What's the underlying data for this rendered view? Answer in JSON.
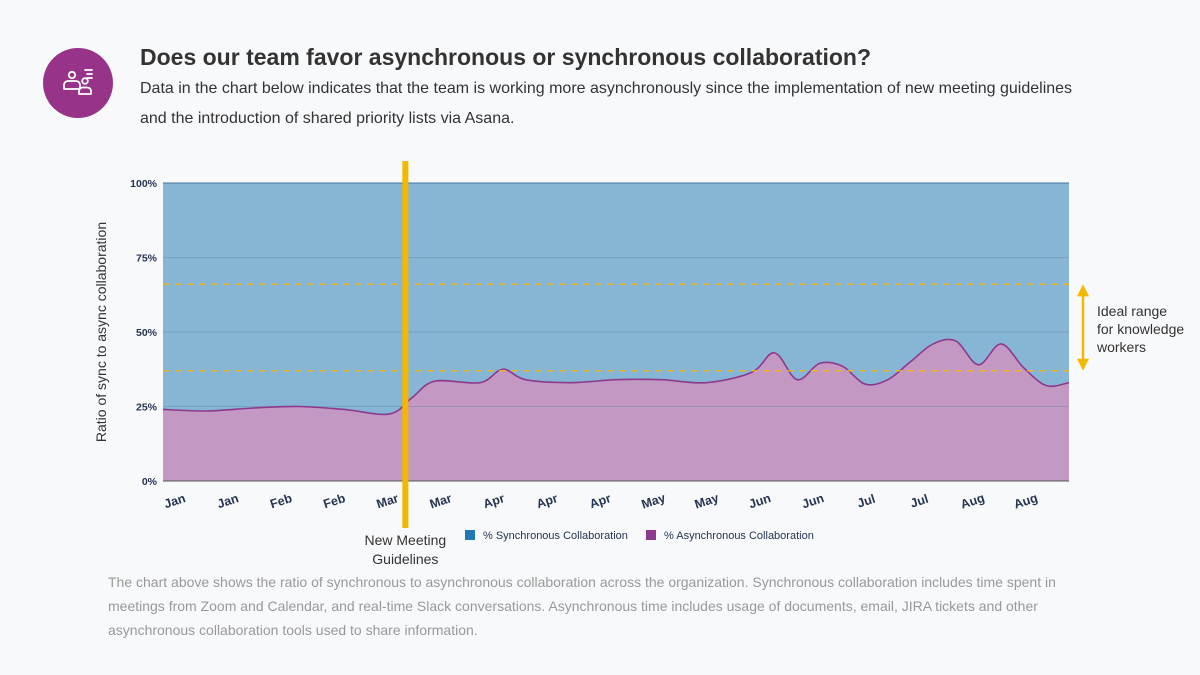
{
  "header": {
    "logo_icon": "team-collaboration-icon",
    "title": "Does our team favor asynchronous or synchronous collaboration?",
    "subtitle": "Data in the chart below indicates that the team is working more asynchronously since the implementation of new meeting guidelines and the introduction of shared priority lists via Asana."
  },
  "footer": {
    "text": "The chart above shows the ratio of synchronous to asynchronous collaboration across the organization. Synchronous collaboration includes time spent in meetings from Zoom and Calendar, and real-time Slack conversations. Asynchronous time includes usage of documents, email, JIRA tickets and other asynchronous collaboration tools used to share information."
  },
  "colors": {
    "accent": "#98338a",
    "sync": "#1f77b4",
    "async": "#8e3a8c",
    "marker": "#f5b800"
  },
  "chart_data": {
    "type": "area",
    "stacked": true,
    "ylabel": "Ratio of sync to async collaboration",
    "ylim": [
      0,
      100
    ],
    "yticks": [
      "0%",
      "25%",
      "50%",
      "75%",
      "100%"
    ],
    "x_labels": [
      "Jan",
      "Jan",
      "Feb",
      "Feb",
      "Mar",
      "Mar",
      "Apr",
      "Apr",
      "Apr",
      "May",
      "May",
      "Jun",
      "Jun",
      "Jul",
      "Jul",
      "Aug",
      "Aug"
    ],
    "series": [
      {
        "name": "% Synchronous Collaboration",
        "color": "#1f77b4",
        "note": "complement to 100%"
      },
      {
        "name": "% Asynchronous Collaboration",
        "color": "#8e3a8c",
        "points": [
          [
            0,
            24
          ],
          [
            1,
            23.5
          ],
          [
            2,
            24.5
          ],
          [
            3,
            25
          ],
          [
            4,
            24
          ],
          [
            5,
            22.5
          ],
          [
            5.5,
            28
          ],
          [
            6,
            33.5
          ],
          [
            7,
            33
          ],
          [
            7.5,
            37.5
          ],
          [
            8,
            34
          ],
          [
            9,
            33
          ],
          [
            10,
            34
          ],
          [
            11,
            34
          ],
          [
            12,
            33
          ],
          [
            13,
            36.5
          ],
          [
            13.5,
            43
          ],
          [
            14,
            34
          ],
          [
            14.5,
            39.5
          ],
          [
            15,
            38.5
          ],
          [
            15.5,
            32.5
          ],
          [
            16,
            34
          ],
          [
            16.5,
            40
          ],
          [
            17,
            46
          ],
          [
            17.5,
            47
          ],
          [
            18,
            39
          ],
          [
            18.5,
            46
          ],
          [
            19,
            38
          ],
          [
            19.5,
            32
          ],
          [
            20,
            33
          ]
        ]
      }
    ],
    "x_domain": [
      0,
      20
    ],
    "reference_lines": [
      {
        "label": "",
        "y": 66,
        "style": "dashed",
        "color": "#f5b800"
      },
      {
        "label": "",
        "y": 37,
        "style": "dashed",
        "color": "#f5b800"
      }
    ],
    "ideal_range_label": [
      "Ideal range",
      "for knowledge",
      "workers"
    ],
    "event_marker": {
      "x": 5.35,
      "label": [
        "New Meeting",
        "Guidelines"
      ]
    },
    "legend_placement": "bottom",
    "grid": true
  }
}
